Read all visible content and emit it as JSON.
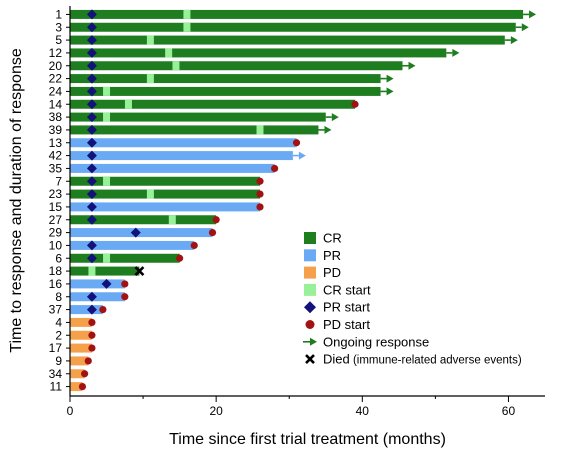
{
  "chart_data": {
    "type": "swimmer",
    "xlabel": "Time since first trial treatment (months)",
    "ylabel": "Time to response and duration of response",
    "xlim": [
      0,
      65
    ],
    "xticks": [
      0,
      20,
      40,
      60
    ],
    "colors": {
      "CR": "#1e7d1e",
      "PR": "#6aaaf5",
      "PD": "#f5a14c",
      "CR_start": "#98f098",
      "PR_start": "#12127a",
      "PD_start": "#a31212",
      "ongoing": "#1e7d1e"
    },
    "legend": {
      "placement": "right",
      "items": [
        {
          "key": "CR",
          "label": "CR",
          "kind": "box"
        },
        {
          "key": "PR",
          "label": "PR",
          "kind": "box"
        },
        {
          "key": "PD",
          "label": "PD",
          "kind": "box"
        },
        {
          "key": "CR_start",
          "label": "CR start",
          "kind": "box"
        },
        {
          "key": "PR_start",
          "label": "PR start",
          "kind": "diamond"
        },
        {
          "key": "PD_start",
          "label": "PD start",
          "kind": "circle"
        },
        {
          "key": "ongoing",
          "label": "Ongoing response",
          "kind": "arrow"
        },
        {
          "key": "died",
          "label": "Died",
          "note": "(immune-related adverse events)",
          "kind": "cross"
        }
      ]
    },
    "patients": [
      {
        "id": "1",
        "segments": [
          {
            "type": "CR",
            "start": 0,
            "end": 62
          }
        ],
        "cr_start": 16,
        "pr_start": 3,
        "ongoing": true
      },
      {
        "id": "3",
        "segments": [
          {
            "type": "CR",
            "start": 0,
            "end": 61
          }
        ],
        "cr_start": 16,
        "pr_start": 3,
        "ongoing": true
      },
      {
        "id": "5",
        "segments": [
          {
            "type": "CR",
            "start": 0,
            "end": 59.5
          }
        ],
        "cr_start": 11,
        "pr_start": 3,
        "ongoing": true
      },
      {
        "id": "12",
        "segments": [
          {
            "type": "CR",
            "start": 0,
            "end": 51.5
          }
        ],
        "cr_start": 13.5,
        "pr_start": 3,
        "ongoing": true
      },
      {
        "id": "20",
        "segments": [
          {
            "type": "CR",
            "start": 0,
            "end": 45.5
          }
        ],
        "cr_start": 14.5,
        "pr_start": 3,
        "ongoing": true
      },
      {
        "id": "22",
        "segments": [
          {
            "type": "CR",
            "start": 0,
            "end": 42.5
          }
        ],
        "cr_start": 11,
        "pr_start": 3,
        "ongoing": true
      },
      {
        "id": "24",
        "segments": [
          {
            "type": "CR",
            "start": 0,
            "end": 42.5
          }
        ],
        "cr_start": 5,
        "pr_start": 3,
        "ongoing": true
      },
      {
        "id": "14",
        "segments": [
          {
            "type": "CR",
            "start": 0,
            "end": 39
          }
        ],
        "cr_start": 8,
        "pr_start": 3,
        "pd_start": 39
      },
      {
        "id": "38",
        "segments": [
          {
            "type": "CR",
            "start": 0,
            "end": 35
          }
        ],
        "cr_start": 5,
        "pr_start": 3,
        "ongoing": true
      },
      {
        "id": "39",
        "segments": [
          {
            "type": "CR",
            "start": 0,
            "end": 34
          }
        ],
        "cr_start": 26,
        "pr_start": 3,
        "ongoing": true
      },
      {
        "id": "13",
        "segments": [
          {
            "type": "PR",
            "start": 0,
            "end": 31
          }
        ],
        "pr_start": 3,
        "pd_start": 31
      },
      {
        "id": "42",
        "segments": [
          {
            "type": "PR",
            "start": 0,
            "end": 30.5
          }
        ],
        "pr_start": 3,
        "ongoing": true
      },
      {
        "id": "35",
        "segments": [
          {
            "type": "PR",
            "start": 0,
            "end": 28
          }
        ],
        "pr_start": 3,
        "pd_start": 28
      },
      {
        "id": "7",
        "segments": [
          {
            "type": "CR",
            "start": 0,
            "end": 26
          }
        ],
        "cr_start": 5,
        "pr_start": 3,
        "pd_start": 26
      },
      {
        "id": "23",
        "segments": [
          {
            "type": "CR",
            "start": 0,
            "end": 26
          }
        ],
        "cr_start": 11,
        "pr_start": 3,
        "pd_start": 26
      },
      {
        "id": "15",
        "segments": [
          {
            "type": "PR",
            "start": 0,
            "end": 26
          }
        ],
        "pr_start": 3,
        "pd_start": 26
      },
      {
        "id": "27",
        "segments": [
          {
            "type": "CR",
            "start": 0,
            "end": 20
          }
        ],
        "cr_start": 14,
        "pr_start": 3,
        "pd_start": 20
      },
      {
        "id": "29",
        "segments": [
          {
            "type": "PR",
            "start": 0,
            "end": 19.5
          }
        ],
        "pr_start": 9,
        "pd_start": 19.5
      },
      {
        "id": "10",
        "segments": [
          {
            "type": "PR",
            "start": 0,
            "end": 17
          }
        ],
        "pr_start": 3,
        "pd_start": 17
      },
      {
        "id": "6",
        "segments": [
          {
            "type": "CR",
            "start": 0,
            "end": 15
          }
        ],
        "cr_start": 5,
        "pr_start": 3,
        "pd_start": 15
      },
      {
        "id": "18",
        "segments": [
          {
            "type": "CR",
            "start": 0,
            "end": 9.5
          }
        ],
        "cr_start": 3,
        "died": 9.5
      },
      {
        "id": "16",
        "segments": [
          {
            "type": "PR",
            "start": 0,
            "end": 7.5
          }
        ],
        "pr_start": 5,
        "pd_start": 7.5
      },
      {
        "id": "8",
        "segments": [
          {
            "type": "PR",
            "start": 0,
            "end": 7.5
          }
        ],
        "pr_start": 3,
        "pd_start": 7.5
      },
      {
        "id": "37",
        "segments": [
          {
            "type": "PR",
            "start": 0,
            "end": 4.5
          }
        ],
        "pr_start": 3,
        "pd_start": 4.5
      },
      {
        "id": "4",
        "segments": [
          {
            "type": "PD",
            "start": 0,
            "end": 3
          }
        ],
        "pd_start": 3
      },
      {
        "id": "2",
        "segments": [
          {
            "type": "PD",
            "start": 0,
            "end": 3
          }
        ],
        "pd_start": 3
      },
      {
        "id": "17",
        "segments": [
          {
            "type": "PD",
            "start": 0,
            "end": 3
          }
        ],
        "pd_start": 3
      },
      {
        "id": "9",
        "segments": [
          {
            "type": "PD",
            "start": 0,
            "end": 2.5
          }
        ],
        "pd_start": 2.5
      },
      {
        "id": "34",
        "segments": [
          {
            "type": "PD",
            "start": 0,
            "end": 2
          }
        ],
        "pd_start": 2
      },
      {
        "id": "11",
        "segments": [
          {
            "type": "PD",
            "start": 0,
            "end": 1.7
          }
        ],
        "pd_start": 1.7
      }
    ]
  }
}
